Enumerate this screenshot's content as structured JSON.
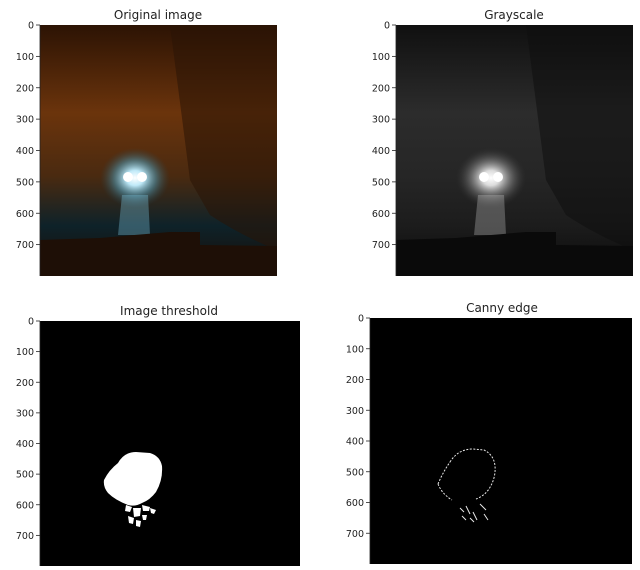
{
  "chart_data": [
    {
      "type": "image",
      "title": "Original image",
      "yticks": [
        0,
        100,
        200,
        300,
        400,
        500,
        600,
        700
      ],
      "ylim": [
        800,
        0
      ],
      "render": "color",
      "colors": {
        "top": "#3a1a04",
        "mid": "#7a3a0c",
        "road": "#0f2630",
        "light": "#dff6ff",
        "glow": "#7fc6e0"
      }
    },
    {
      "type": "image",
      "title": "Grayscale",
      "yticks": [
        0,
        100,
        200,
        300,
        400,
        500,
        600,
        700
      ],
      "ylim": [
        800,
        0
      ],
      "render": "gray",
      "colors": {
        "top": "#151515",
        "mid": "#2e2e2e",
        "road": "#161616",
        "light": "#ffffff",
        "glow": "#bdbdbd"
      }
    },
    {
      "type": "image",
      "title": "Image threshold",
      "yticks": [
        0,
        100,
        200,
        300,
        400,
        500,
        600,
        700
      ],
      "ylim": [
        800,
        0
      ],
      "render": "threshold",
      "colors": {
        "background": "#000000",
        "foreground": "#ffffff"
      }
    },
    {
      "type": "image",
      "title": "Canny edge",
      "yticks": [
        0,
        100,
        200,
        300,
        400,
        500,
        600,
        700
      ],
      "ylim": [
        800,
        0
      ],
      "render": "edge",
      "colors": {
        "background": "#000000",
        "foreground": "#e8e8e8"
      }
    }
  ]
}
